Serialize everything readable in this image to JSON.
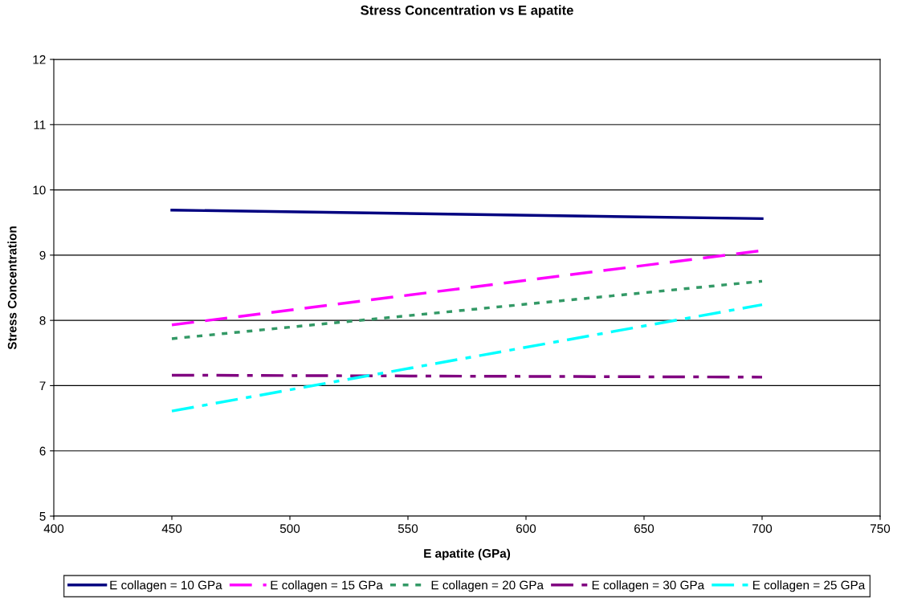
{
  "chart_data": {
    "type": "line",
    "title": "Stress Concentration vs E apatite",
    "xlabel": "E apatite (GPa)",
    "ylabel": "Stress Concentration",
    "x": [
      450,
      700
    ],
    "series": [
      {
        "name": "E collagen = 10 GPa",
        "color": "#000080",
        "line_style": "solid",
        "values": [
          9.69,
          9.56
        ]
      },
      {
        "name": "E collagen = 15 GPa",
        "color": "#ff00ff",
        "line_style": "dashed",
        "values": [
          7.93,
          9.07
        ]
      },
      {
        "name": "E collagen = 20 GPa",
        "color": "#339966",
        "line_style": "dotted",
        "values": [
          7.72,
          8.6
        ]
      },
      {
        "name": "E collagen = 30 GPa",
        "color": "#800080",
        "line_style": "dashdot",
        "values": [
          7.16,
          7.13
        ]
      },
      {
        "name": "E collagen = 25 GPa",
        "color": "#00ffff",
        "line_style": "dashdot",
        "values": [
          6.61,
          8.24
        ]
      }
    ],
    "xlim": [
      400,
      750
    ],
    "xticks": [
      400,
      450,
      500,
      550,
      600,
      650,
      700,
      750
    ],
    "ylim": [
      5,
      12
    ],
    "yticks": [
      5,
      6,
      7,
      8,
      9,
      10,
      11,
      12
    ],
    "grid": "y",
    "legend": "bottom",
    "marker": "none"
  }
}
